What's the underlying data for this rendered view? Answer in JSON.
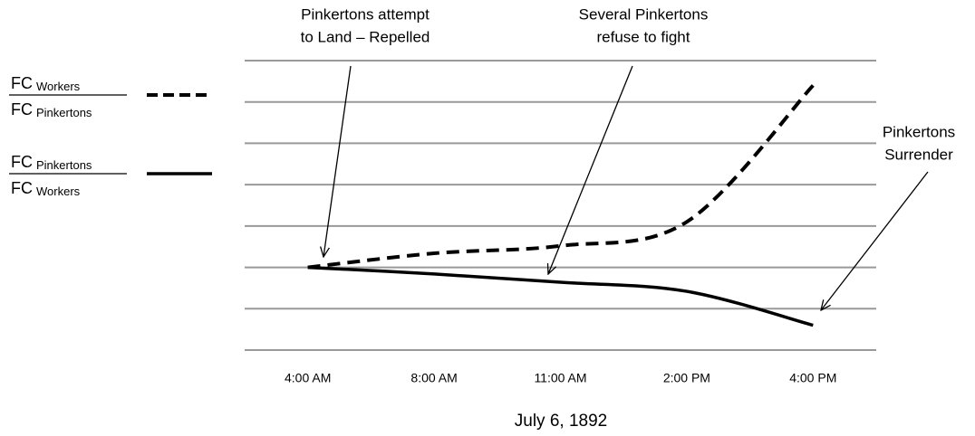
{
  "chart_data": {
    "type": "line",
    "categories": [
      "4:00 AM",
      "8:00 AM",
      "11:00 AM",
      "2:00 PM",
      "4:00 PM"
    ],
    "xlabel": "July 6, 1892",
    "ylim": [
      0,
      7
    ],
    "yticks": [
      0,
      1,
      2,
      3,
      4,
      5,
      6,
      7
    ],
    "grid": true,
    "series": [
      {
        "numerator": [
          "FC",
          "Workers"
        ],
        "denominator": [
          "FC",
          "Pinkertons"
        ],
        "color": "#000000",
        "dashed": true,
        "values": [
          2.0,
          2.34,
          2.52,
          3.1,
          6.4
        ]
      },
      {
        "numerator": [
          "FC",
          "Pinkertons"
        ],
        "denominator": [
          "FC",
          "Workers"
        ],
        "color": "#000000",
        "dashed": false,
        "values": [
          2.0,
          1.84,
          1.64,
          1.42,
          0.6
        ]
      }
    ],
    "annotations": [
      {
        "lines": [
          "Pinkertons attempt",
          "to Land – Repelled"
        ]
      },
      {
        "lines": [
          "Several Pinkertons",
          "refuse to fight"
        ]
      },
      {
        "lines": [
          "Pinkertons",
          "Surrender"
        ]
      }
    ]
  }
}
